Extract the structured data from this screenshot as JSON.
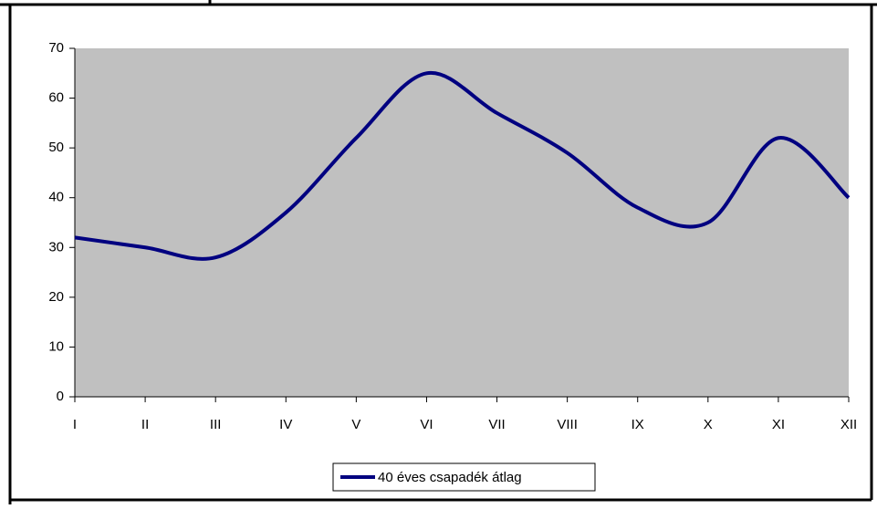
{
  "chart_data": {
    "type": "line",
    "categories": [
      "I",
      "II",
      "III",
      "IV",
      "V",
      "VI",
      "VII",
      "VIII",
      "IX",
      "X",
      "XI",
      "XII"
    ],
    "series": [
      {
        "name": "40 éves csapadék átlag",
        "color": "#000080",
        "values": [
          32,
          30,
          28,
          37,
          52,
          65,
          57,
          49,
          38,
          35,
          52,
          40
        ]
      }
    ],
    "ylim": [
      0,
      70
    ],
    "yticks": [
      0,
      10,
      20,
      30,
      40,
      50,
      60,
      70
    ],
    "grid": false,
    "smooth": true,
    "plot_background": "#c0c0c0",
    "legend": "bottom"
  }
}
